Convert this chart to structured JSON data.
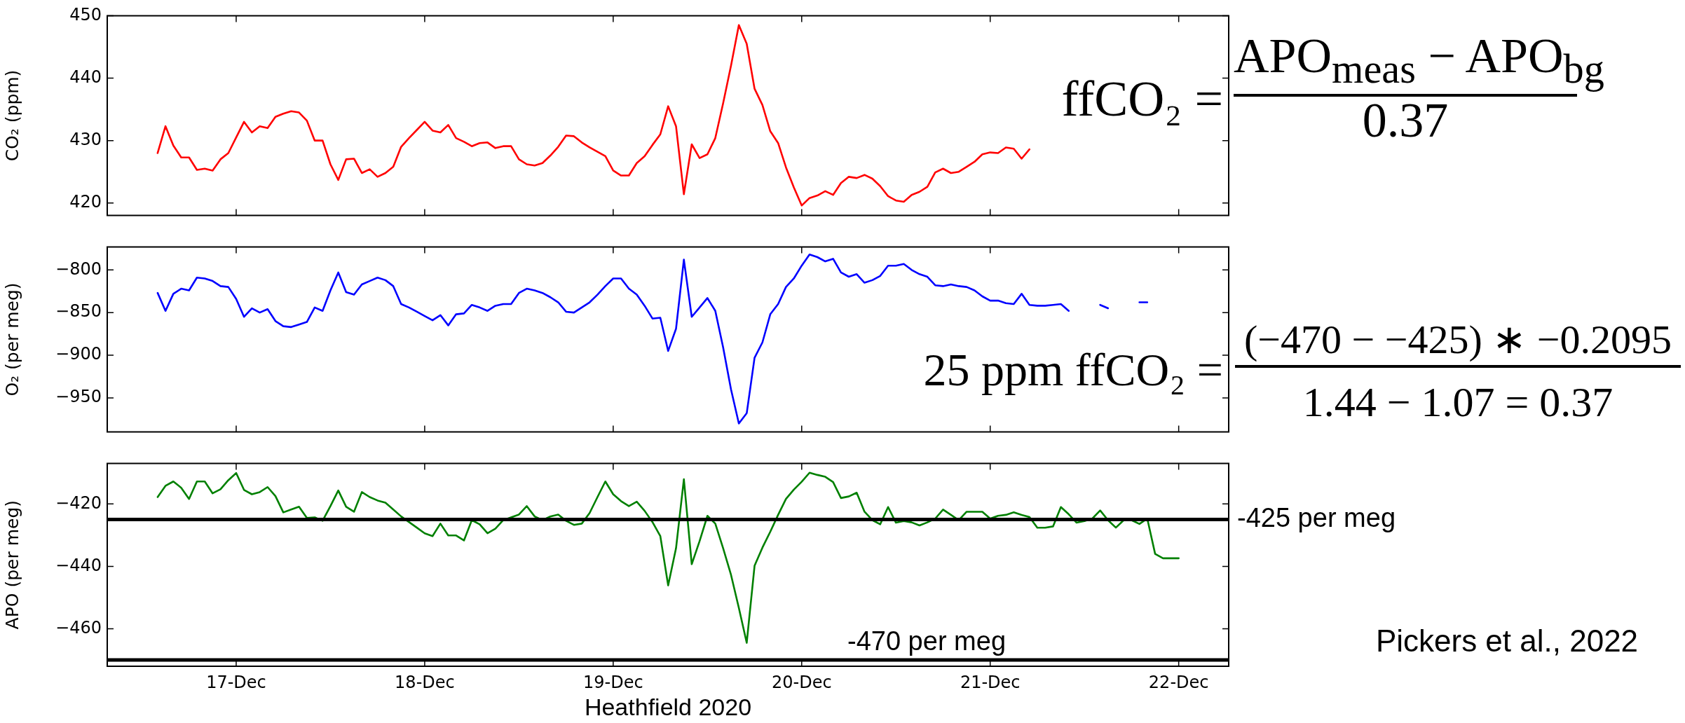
{
  "chart_data": [
    {
      "type": "line",
      "ylabel": "CO₂ (ppm)",
      "tick_labels": "y",
      "x": [
        "2020-12-16T14:00",
        "2020-12-16T15:00",
        "2020-12-16T16:00",
        "2020-12-16T17:00",
        "2020-12-16T18:00",
        "2020-12-16T19:00",
        "2020-12-16T20:00",
        "2020-12-16T21:00",
        "2020-12-16T22:00",
        "2020-12-16T23:00",
        "2020-12-17T00:00",
        "2020-12-17T01:00",
        "2020-12-17T02:00",
        "2020-12-17T03:00",
        "2020-12-17T04:00",
        "2020-12-17T05:00",
        "2020-12-17T06:00",
        "2020-12-17T07:00",
        "2020-12-17T08:00",
        "2020-12-17T09:00",
        "2020-12-17T10:00",
        "2020-12-17T11:00",
        "2020-12-17T12:00",
        "2020-12-17T13:00",
        "2020-12-17T14:00",
        "2020-12-17T15:00",
        "2020-12-17T16:00",
        "2020-12-17T17:00",
        "2020-12-17T18:00",
        "2020-12-17T19:00",
        "2020-12-17T20:00",
        "2020-12-17T21:00",
        "2020-12-17T22:00",
        "2020-12-17T23:00",
        "2020-12-18T00:00",
        "2020-12-18T01:00",
        "2020-12-18T02:00",
        "2020-12-18T03:00",
        "2020-12-18T04:00",
        "2020-12-18T05:00",
        "2020-12-18T06:00",
        "2020-12-18T07:00",
        "2020-12-18T08:00",
        "2020-12-18T09:00",
        "2020-12-18T10:00",
        "2020-12-18T11:00",
        "2020-12-18T12:00",
        "2020-12-18T13:00",
        "2020-12-18T14:00",
        "2020-12-18T15:00",
        "2020-12-18T16:00",
        "2020-12-18T17:00",
        "2020-12-18T18:00",
        "2020-12-18T19:00",
        "2020-12-18T20:00",
        "2020-12-18T21:00",
        "2020-12-18T22:00",
        "2020-12-18T23:00",
        "2020-12-19T00:00",
        "2020-12-19T01:00",
        "2020-12-19T02:00",
        "2020-12-19T03:00",
        "2020-12-19T04:00",
        "2020-12-19T05:00",
        "2020-12-19T06:00",
        "2020-12-19T07:00",
        "2020-12-19T08:00",
        "2020-12-19T09:00",
        "2020-12-19T10:00",
        "2020-12-19T11:00",
        "2020-12-19T12:00",
        "2020-12-19T13:00",
        "2020-12-19T14:00",
        "2020-12-19T15:00",
        "2020-12-19T16:00",
        "2020-12-19T17:00",
        "2020-12-19T18:00",
        "2020-12-19T19:00",
        "2020-12-19T20:00",
        "2020-12-19T21:00",
        "2020-12-19T22:00",
        "2020-12-19T23:00",
        "2020-12-20T00:00",
        "2020-12-20T01:00",
        "2020-12-20T02:00",
        "2020-12-20T03:00",
        "2020-12-20T04:00",
        "2020-12-20T05:00",
        "2020-12-20T06:00",
        "2020-12-20T07:00",
        "2020-12-20T08:00",
        "2020-12-20T09:00",
        "2020-12-20T10:00",
        "2020-12-20T11:00",
        "2020-12-20T12:00",
        "2020-12-20T13:00",
        "2020-12-20T14:00",
        "2020-12-20T15:00",
        "2020-12-20T16:00",
        "2020-12-20T17:00",
        "2020-12-20T18:00",
        "2020-12-20T19:00",
        "2020-12-20T20:00",
        "2020-12-20T21:00",
        "2020-12-20T22:00",
        "2020-12-20T23:00",
        "2020-12-21T00:00",
        "2020-12-21T01:00",
        "2020-12-21T02:00",
        "2020-12-21T03:00",
        "2020-12-21T04:00",
        "2020-12-21T05:00"
      ],
      "series": [
        {
          "color": "#ff0000",
          "values": [
            428.0,
            432.3,
            429.2,
            427.3,
            427.3,
            425.3,
            425.5,
            425.2,
            427.0,
            428.0,
            430.5,
            433.0,
            431.3,
            432.3,
            432.0,
            433.8,
            434.3,
            434.7,
            434.5,
            433.2,
            430.0,
            430.0,
            426.2,
            423.7,
            427.0,
            427.1,
            424.8,
            425.4,
            424.2,
            424.8,
            425.8,
            429.0,
            430.4,
            431.7,
            433.0,
            431.6,
            431.3,
            432.5,
            430.4,
            429.8,
            429.1,
            429.6,
            429.7,
            428.8,
            429.1,
            429.1,
            427.0,
            426.2,
            426.0,
            426.4,
            427.6,
            429.0,
            430.8,
            430.7,
            429.7,
            428.9,
            428.2,
            427.5,
            425.2,
            424.4,
            424.4,
            426.4,
            427.5,
            429.3,
            431.0,
            435.5,
            432.3,
            421.4,
            429.4,
            427.2,
            427.8,
            430.4,
            436.0,
            442.0,
            448.5,
            445.5,
            438.3,
            435.7,
            431.5,
            429.6,
            425.7,
            422.5,
            419.6,
            420.8,
            421.2,
            421.9,
            421.3,
            423.2,
            424.2,
            424.0,
            424.5,
            423.9,
            422.7,
            421.1,
            420.4,
            420.2,
            421.3,
            421.8,
            422.6,
            424.9,
            425.5,
            424.8,
            425.0,
            425.8,
            426.6,
            427.8,
            428.1,
            428.0,
            428.9,
            428.7,
            427.1,
            428.6
          ]
        }
      ],
      "xlim": [
        "2020-12-16T07:35",
        "2020-12-22T06:22"
      ],
      "xticks": [
        {
          "value": "2020-12-17",
          "label": null
        },
        {
          "value": "2020-12-18",
          "label": null
        },
        {
          "value": "2020-12-19",
          "label": null
        },
        {
          "value": "2020-12-20",
          "label": null
        },
        {
          "value": "2020-12-21",
          "label": null
        },
        {
          "value": "2020-12-22",
          "label": null
        }
      ],
      "ylim": [
        418,
        450
      ],
      "yticks": [
        420,
        430,
        440,
        450
      ],
      "annotations": [
        "ffCO₂ =",
        "APO$_{meas}$ − APO$_{bg}$",
        "0.37"
      ]
    },
    {
      "type": "line",
      "ylabel": "O₂ (per meg)",
      "tick_labels": "y",
      "x": [
        "2020-12-16T14:00",
        "2020-12-16T15:00",
        "2020-12-16T16:00",
        "2020-12-16T17:00",
        "2020-12-16T18:00",
        "2020-12-16T19:00",
        "2020-12-16T20:00",
        "2020-12-16T21:00",
        "2020-12-16T22:00",
        "2020-12-16T23:00",
        "2020-12-17T00:00",
        "2020-12-17T01:00",
        "2020-12-17T02:00",
        "2020-12-17T03:00",
        "2020-12-17T04:00",
        "2020-12-17T05:00",
        "2020-12-17T06:00",
        "2020-12-17T07:00",
        "2020-12-17T08:00",
        "2020-12-17T09:00",
        "2020-12-17T10:00",
        "2020-12-17T11:00",
        "2020-12-17T12:00",
        "2020-12-17T13:00",
        "2020-12-17T14:00",
        "2020-12-17T15:00",
        "2020-12-17T16:00",
        "2020-12-17T17:00",
        "2020-12-17T18:00",
        "2020-12-17T19:00",
        "2020-12-17T20:00",
        "2020-12-17T21:00",
        "2020-12-17T22:00",
        "2020-12-17T23:00",
        "2020-12-18T00:00",
        "2020-12-18T01:00",
        "2020-12-18T02:00",
        "2020-12-18T03:00",
        "2020-12-18T04:00",
        "2020-12-18T05:00",
        "2020-12-18T06:00",
        "2020-12-18T07:00",
        "2020-12-18T08:00",
        "2020-12-18T09:00",
        "2020-12-18T10:00",
        "2020-12-18T11:00",
        "2020-12-18T12:00",
        "2020-12-18T13:00",
        "2020-12-18T14:00",
        "2020-12-18T15:00",
        "2020-12-18T16:00",
        "2020-12-18T17:00",
        "2020-12-18T18:00",
        "2020-12-18T19:00",
        "2020-12-18T20:00",
        "2020-12-18T21:00",
        "2020-12-18T22:00",
        "2020-12-18T23:00",
        "2020-12-19T00:00",
        "2020-12-19T01:00",
        "2020-12-19T02:00",
        "2020-12-19T03:00",
        "2020-12-19T04:00",
        "2020-12-19T05:00",
        "2020-12-19T06:00",
        "2020-12-19T07:00",
        "2020-12-19T08:00",
        "2020-12-19T09:00",
        "2020-12-19T10:00",
        "2020-12-19T11:00",
        "2020-12-19T12:00",
        "2020-12-19T13:00",
        "2020-12-19T14:00",
        "2020-12-19T15:00",
        "2020-12-19T16:00",
        "2020-12-19T17:00",
        "2020-12-19T18:00",
        "2020-12-19T19:00",
        "2020-12-19T20:00",
        "2020-12-19T21:00",
        "2020-12-19T22:00",
        "2020-12-19T23:00",
        "2020-12-20T00:00",
        "2020-12-20T01:00",
        "2020-12-20T02:00",
        "2020-12-20T03:00",
        "2020-12-20T04:00",
        "2020-12-20T05:00",
        "2020-12-20T06:00",
        "2020-12-20T07:00",
        "2020-12-20T08:00",
        "2020-12-20T09:00",
        "2020-12-20T10:00",
        "2020-12-20T11:00",
        "2020-12-20T12:00",
        "2020-12-20T13:00",
        "2020-12-20T14:00",
        "2020-12-20T15:00",
        "2020-12-20T16:00",
        "2020-12-20T17:00",
        "2020-12-20T18:00",
        "2020-12-20T19:00",
        "2020-12-20T20:00",
        "2020-12-20T21:00",
        "2020-12-20T22:00",
        "2020-12-20T23:00",
        "2020-12-21T00:00",
        "2020-12-21T01:00",
        "2020-12-21T02:00",
        "2020-12-21T03:00",
        "2020-12-21T04:00",
        "2020-12-21T05:00",
        "2020-12-21T06:00",
        "2020-12-21T07:00",
        "2020-12-21T08:00",
        "2020-12-21T09:00",
        "2020-12-21T10:00",
        "2020-12-21T11:00",
        "2020-12-21T12:00",
        "2020-12-21T13:00",
        "2020-12-21T14:00",
        "2020-12-21T15:00",
        "2020-12-21T16:00",
        "2020-12-21T17:00",
        "2020-12-21T18:00",
        "2020-12-21T19:00",
        "2020-12-21T20:00"
      ],
      "series": [
        {
          "color": "#0000ff",
          "values": [
            -827,
            -848,
            -828,
            -822,
            -824,
            -809,
            -810,
            -813,
            -819,
            -820,
            -834,
            -855,
            -845,
            -850,
            -846,
            -860,
            -866,
            -867,
            -864,
            -861,
            -844,
            -848,
            -824,
            -803,
            -826,
            -829,
            -817,
            -813,
            -809,
            -812,
            -819,
            -840,
            -844,
            -849,
            -854,
            -859,
            -853,
            -865,
            -852,
            -851,
            -841,
            -844,
            -848,
            -842,
            -840,
            -840,
            -827,
            -822,
            -824,
            -827,
            -832,
            -838,
            -849,
            -850,
            -844,
            -838,
            -829,
            -819,
            -810,
            -810,
            -822,
            -829,
            -842,
            -857,
            -856,
            -895,
            -869,
            -788,
            -855,
            -844,
            -833,
            -848,
            -891,
            -940,
            -980,
            -968,
            -903,
            -885,
            -852,
            -840,
            -820,
            -810,
            -795,
            -782,
            -785,
            -790,
            -787,
            -803,
            -808,
            -805,
            -815,
            -812,
            -807,
            -795,
            -795,
            -793,
            -800,
            -805,
            -808,
            -818,
            -819,
            -817,
            -819,
            -820,
            -824,
            -831,
            -836,
            -836,
            -839,
            -840,
            -828,
            -841,
            -842,
            -842,
            -841,
            -840,
            -848,
            null,
            null,
            null,
            -841,
            -845,
            null,
            null,
            null,
            -838,
            -838
          ]
        }
      ],
      "xlim": [
        "2020-12-16T07:35",
        "2020-12-22T06:22"
      ],
      "xticks": [
        {
          "value": "2020-12-17",
          "label": null
        },
        {
          "value": "2020-12-18",
          "label": null
        },
        {
          "value": "2020-12-19",
          "label": null
        },
        {
          "value": "2020-12-20",
          "label": null
        },
        {
          "value": "2020-12-21",
          "label": null
        },
        {
          "value": "2020-12-22",
          "label": null
        }
      ],
      "ylim": [
        -990,
        -773
      ],
      "yticks": [
        {
          "value": -950,
          "label": "−950"
        },
        {
          "value": -900,
          "label": "−900"
        },
        {
          "value": -850,
          "label": "−850"
        },
        {
          "value": -800,
          "label": "−800"
        }
      ],
      "annotations": [
        "25 ppm ffCO₂ =",
        "(−470 − −425) ∗ −0.2095",
        "1.44 − 1.07 = 0.37"
      ]
    },
    {
      "type": "line",
      "ylabel": "APO (per meg)",
      "xlabel": "Heathfield 2020",
      "x": [
        "2020-12-16T14:00",
        "2020-12-16T15:00",
        "2020-12-16T16:00",
        "2020-12-16T17:00",
        "2020-12-16T18:00",
        "2020-12-16T19:00",
        "2020-12-16T20:00",
        "2020-12-16T21:00",
        "2020-12-16T22:00",
        "2020-12-16T23:00",
        "2020-12-17T00:00",
        "2020-12-17T01:00",
        "2020-12-17T02:00",
        "2020-12-17T03:00",
        "2020-12-17T04:00",
        "2020-12-17T05:00",
        "2020-12-17T06:00",
        "2020-12-17T07:00",
        "2020-12-17T08:00",
        "2020-12-17T09:00",
        "2020-12-17T10:00",
        "2020-12-17T11:00",
        "2020-12-17T12:00",
        "2020-12-17T13:00",
        "2020-12-17T14:00",
        "2020-12-17T15:00",
        "2020-12-17T16:00",
        "2020-12-17T17:00",
        "2020-12-17T18:00",
        "2020-12-17T19:00",
        "2020-12-17T20:00",
        "2020-12-17T21:00",
        "2020-12-17T22:00",
        "2020-12-17T23:00",
        "2020-12-18T00:00",
        "2020-12-18T01:00",
        "2020-12-18T02:00",
        "2020-12-18T03:00",
        "2020-12-18T04:00",
        "2020-12-18T05:00",
        "2020-12-18T06:00",
        "2020-12-18T07:00",
        "2020-12-18T08:00",
        "2020-12-18T09:00",
        "2020-12-18T10:00",
        "2020-12-18T11:00",
        "2020-12-18T12:00",
        "2020-12-18T13:00",
        "2020-12-18T14:00",
        "2020-12-18T15:00",
        "2020-12-18T16:00",
        "2020-12-18T17:00",
        "2020-12-18T18:00",
        "2020-12-18T19:00",
        "2020-12-18T20:00",
        "2020-12-18T21:00",
        "2020-12-18T22:00",
        "2020-12-18T23:00",
        "2020-12-19T00:00",
        "2020-12-19T01:00",
        "2020-12-19T02:00",
        "2020-12-19T03:00",
        "2020-12-19T04:00",
        "2020-12-19T05:00",
        "2020-12-19T06:00",
        "2020-12-19T07:00",
        "2020-12-19T08:00",
        "2020-12-19T09:00",
        "2020-12-19T10:00",
        "2020-12-19T11:00",
        "2020-12-19T12:00",
        "2020-12-19T13:00",
        "2020-12-19T14:00",
        "2020-12-19T15:00",
        "2020-12-19T16:00",
        "2020-12-19T17:00",
        "2020-12-19T18:00",
        "2020-12-19T19:00",
        "2020-12-19T20:00",
        "2020-12-19T21:00",
        "2020-12-19T22:00",
        "2020-12-19T23:00",
        "2020-12-20T00:00",
        "2020-12-20T01:00",
        "2020-12-20T02:00",
        "2020-12-20T03:00",
        "2020-12-20T04:00",
        "2020-12-20T05:00",
        "2020-12-20T06:00",
        "2020-12-20T07:00",
        "2020-12-20T08:00",
        "2020-12-20T09:00",
        "2020-12-20T10:00",
        "2020-12-20T11:00",
        "2020-12-20T12:00",
        "2020-12-20T13:00",
        "2020-12-20T14:00",
        "2020-12-20T15:00",
        "2020-12-20T16:00",
        "2020-12-20T17:00",
        "2020-12-20T18:00",
        "2020-12-20T19:00",
        "2020-12-20T20:00",
        "2020-12-20T21:00",
        "2020-12-20T22:00",
        "2020-12-20T23:00",
        "2020-12-21T00:00",
        "2020-12-21T01:00",
        "2020-12-21T02:00",
        "2020-12-21T03:00",
        "2020-12-21T04:00",
        "2020-12-21T05:00",
        "2020-12-21T06:00",
        "2020-12-21T07:00",
        "2020-12-21T08:00",
        "2020-12-21T09:00",
        "2020-12-21T10:00",
        "2020-12-21T11:00",
        "2020-12-21T12:00",
        "2020-12-21T13:00",
        "2020-12-21T14:00",
        "2020-12-21T15:00",
        "2020-12-21T16:00",
        "2020-12-21T17:00",
        "2020-12-21T18:00",
        "2020-12-21T19:00",
        "2020-12-21T20:00",
        "2020-12-21T21:00",
        "2020-12-21T22:00",
        "2020-12-21T23:00",
        "2020-12-22T00:00"
      ],
      "series": [
        {
          "color": "#008000",
          "values": [
            -417.8,
            -414.2,
            -412.8,
            -414.8,
            -418.4,
            -412.8,
            -412.8,
            -416.6,
            -415.3,
            -412.4,
            -410.1,
            -415.5,
            -416.9,
            -416.2,
            -414.6,
            -417.5,
            -422.7,
            -421.8,
            -420.9,
            -424.5,
            -424.3,
            -425.4,
            -420.7,
            -415.7,
            -420.9,
            -422.5,
            -416.2,
            -417.8,
            -418.9,
            -419.6,
            -421.8,
            -424.0,
            -425.8,
            -427.6,
            -429.4,
            -430.3,
            -426.3,
            -430.1,
            -430.1,
            -431.7,
            -425.2,
            -426.5,
            -429.4,
            -427.9,
            -425.2,
            -424.3,
            -423.4,
            -420.7,
            -424.0,
            -425.2,
            -424.0,
            -423.4,
            -425.4,
            -426.7,
            -426.3,
            -422.9,
            -417.8,
            -412.8,
            -416.9,
            -419.1,
            -420.7,
            -419.3,
            -422.2,
            -425.8,
            -430.3,
            -446.1,
            -434.2,
            -412.1,
            -439.3,
            -431.9,
            -423.8,
            -426.3,
            -434.2,
            -442.7,
            -453.3,
            -464.5,
            -439.8,
            -434.0,
            -428.9,
            -423.5,
            -418.4,
            -415.4,
            -412.9,
            -410.0,
            -410.7,
            -411.3,
            -413.0,
            -418.1,
            -417.6,
            -416.4,
            -422.5,
            -425.2,
            -426.5,
            -421.0,
            -426.0,
            -425.5,
            -425.9,
            -426.9,
            -425.9,
            -424.7,
            -421.8,
            -423.5,
            -425.2,
            -422.5,
            -422.5,
            -422.5,
            -424.7,
            -423.8,
            -423.5,
            -422.7,
            -423.5,
            -424.2,
            -427.6,
            -427.6,
            -427.2,
            -421.0,
            -423.3,
            -426.0,
            -425.5,
            -424.7,
            -422.1,
            -425.2,
            -427.6,
            -425.2,
            -425.2,
            -426.4,
            -424.7,
            -436.0,
            -437.4,
            -437.4,
            -437.4
          ]
        }
      ],
      "xlim": [
        "2020-12-16T07:35",
        "2020-12-22T06:22"
      ],
      "xticks": [
        {
          "value": "2020-12-17",
          "label": "17-Dec"
        },
        {
          "value": "2020-12-18",
          "label": "18-Dec"
        },
        {
          "value": "2020-12-19",
          "label": "19-Dec"
        },
        {
          "value": "2020-12-20",
          "label": "20-Dec"
        },
        {
          "value": "2020-12-21",
          "label": "21-Dec"
        },
        {
          "value": "2020-12-22",
          "label": "22-Dec"
        }
      ],
      "ylim": [
        -472,
        -407
      ],
      "yticks": [
        {
          "value": -460,
          "label": "−460"
        },
        {
          "value": -440,
          "label": "−440"
        },
        {
          "value": -420,
          "label": "−420"
        }
      ],
      "ref_lines": [
        {
          "axis": "y",
          "value": -425,
          "label": "-425 per meg",
          "color": "#000000"
        },
        {
          "axis": "y",
          "value": -470,
          "label": "-470 per meg",
          "color": "#000000"
        }
      ],
      "annotations": [
        "Pickers et al., 2022"
      ]
    }
  ]
}
